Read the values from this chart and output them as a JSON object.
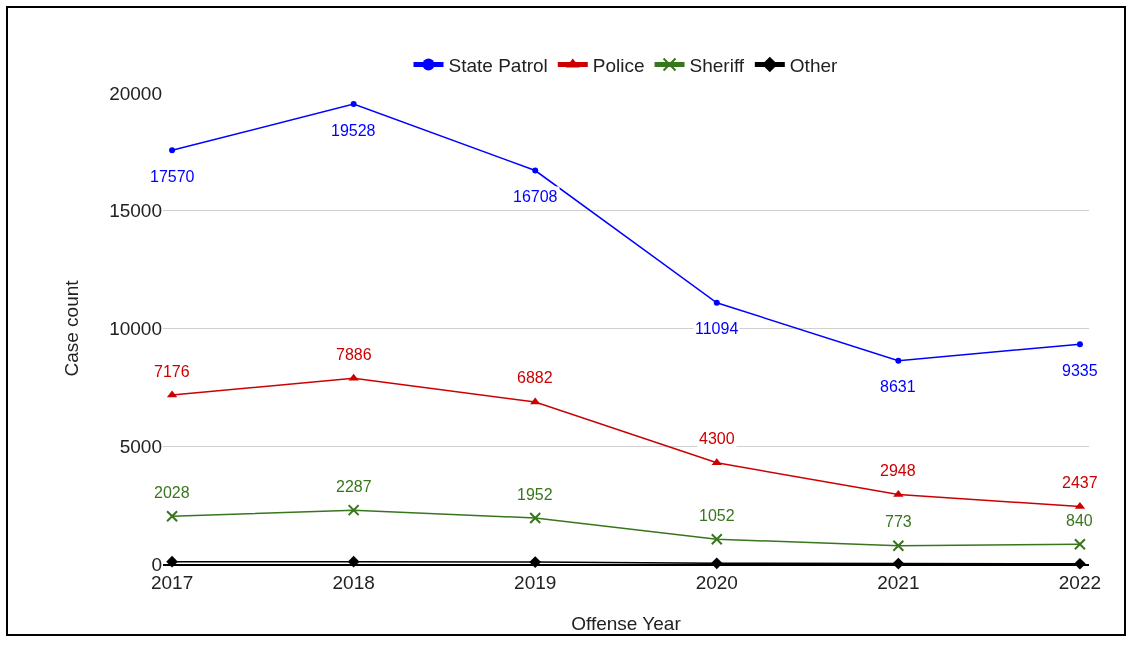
{
  "chart_data": {
    "type": "line",
    "xlabel": "Offense Year",
    "ylabel": "Case count",
    "categories": [
      "2017",
      "2018",
      "2019",
      "2020",
      "2021",
      "2022"
    ],
    "series": [
      {
        "name": "State Patrol",
        "color": "#0000ff",
        "marker": "circle",
        "values": [
          17570,
          19528,
          16708,
          11094,
          8631,
          9335
        ],
        "value_labels": [
          "17570",
          "19528",
          "16708",
          "11094",
          "8631",
          "9335"
        ]
      },
      {
        "name": "Police",
        "color": "#cc0000",
        "marker": "triangle",
        "values": [
          7176,
          7886,
          6882,
          4300,
          2948,
          2437
        ],
        "value_labels": [
          "7176",
          "7886",
          "6882",
          "4300",
          "2948",
          "2437"
        ]
      },
      {
        "name": "Sheriff",
        "color": "#38761d",
        "marker": "cross",
        "values": [
          2028,
          2287,
          1952,
          1052,
          773,
          840
        ],
        "value_labels": [
          "2028",
          "2287",
          "1952",
          "1052",
          "773",
          "840"
        ]
      },
      {
        "name": "Other",
        "color": "#000000",
        "marker": "diamond",
        "values": [
          100,
          100,
          80,
          30,
          20,
          10
        ]
      }
    ],
    "ylim": [
      0,
      20000
    ],
    "yticks": [
      0,
      5000,
      10000,
      15000,
      20000
    ],
    "grid": "y",
    "legend": "top",
    "line_style": "solid"
  }
}
